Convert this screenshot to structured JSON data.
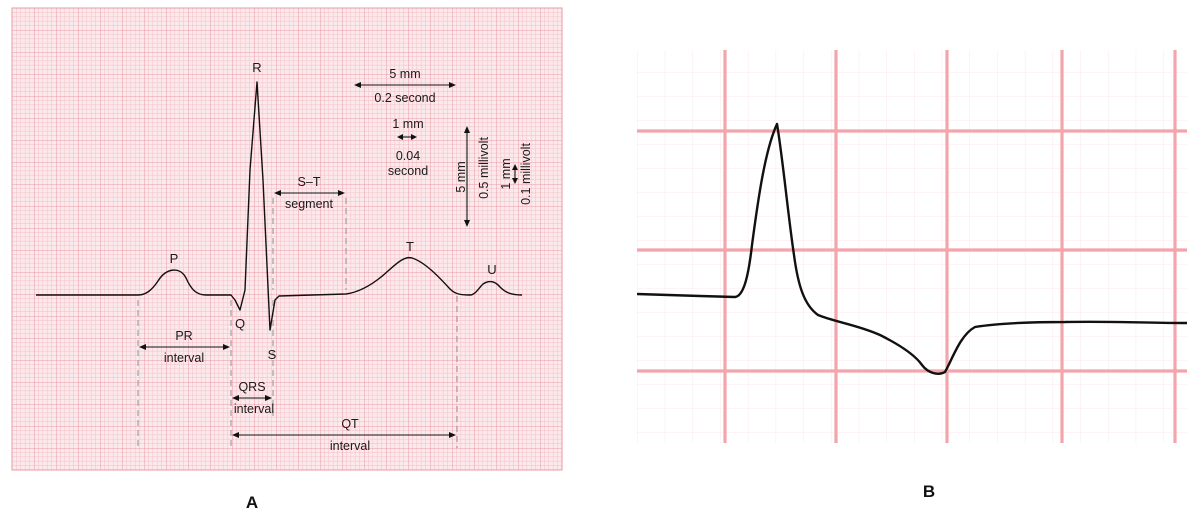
{
  "panel_a": {
    "letter": "A",
    "waves": {
      "p": "P",
      "q": "Q",
      "r": "R",
      "s": "S",
      "t": "T",
      "u": "U"
    },
    "scale": {
      "big_box_h1": "5 mm",
      "big_box_h2": "0.2 second",
      "small_box_h1": "1 mm",
      "small_box_h2": "0.04",
      "small_box_h3": "second",
      "big_box_v1": "5 mm",
      "big_box_v2": "0.5 millivolt",
      "small_box_v1": "1 mm",
      "small_box_v2": "0.1 millivolt"
    },
    "intervals": {
      "st_1": "S–T",
      "st_2": "segment",
      "pr_1": "PR",
      "pr_2": "interval",
      "qrs_1": "QRS",
      "qrs_2": "interval",
      "qt_1": "QT",
      "qt_2": "interval"
    }
  },
  "panel_b": {
    "letter": "B"
  },
  "colors": {
    "grid_fine": "#f4c6cc",
    "grid_major": "#e99aa6",
    "paper_a": "#fce9ec",
    "grid_b_major": "#f4a5ab",
    "grid_b_fine": "#fbe3e6",
    "trace": "#111111",
    "dash": "#9a9a9a"
  }
}
